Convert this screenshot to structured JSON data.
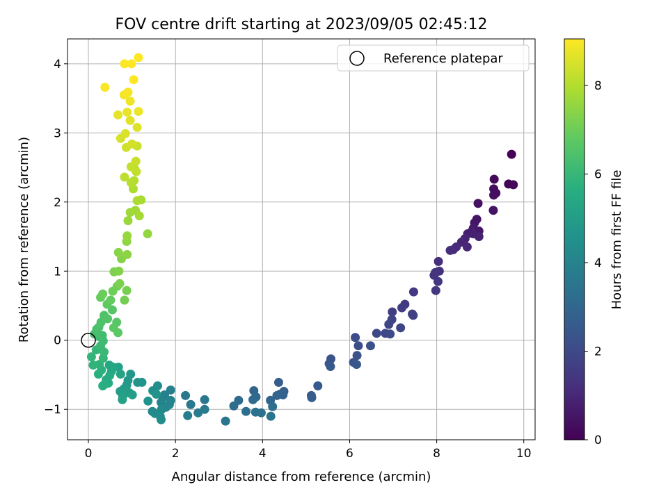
{
  "chart_data": {
    "type": "scatter",
    "title": "FOV centre drift starting at 2023/09/05 02:45:12",
    "xlabel": "Angular distance from reference (arcmin)",
    "ylabel": "Rotation from reference (arcmin)",
    "xlim": [
      -0.48,
      10.26
    ],
    "ylim": [
      -1.44,
      4.36
    ],
    "xticks": [
      0,
      2,
      4,
      6,
      8,
      10
    ],
    "yticks": [
      -1,
      0,
      1,
      2,
      3,
      4
    ],
    "grid": true,
    "legend": {
      "placement": "top-right",
      "entries": [
        "Reference platepar"
      ]
    },
    "reference_point": {
      "x": 0,
      "y": 0
    },
    "colorbar": {
      "label": "Hours from first FF file",
      "colormap": "viridis",
      "range": [
        0,
        9.05
      ],
      "ticks": [
        0,
        2,
        4,
        6,
        8
      ]
    },
    "series": [
      {
        "points": [
          [
            9.72,
            2.69,
            0.05
          ],
          [
            9.65,
            2.26,
            0.1
          ],
          [
            9.76,
            2.25,
            0.15
          ],
          [
            9.32,
            2.33,
            0.2
          ],
          [
            9.31,
            2.19,
            0.25
          ],
          [
            9.36,
            2.13,
            0.3
          ],
          [
            9.31,
            2.1,
            0.35
          ],
          [
            8.95,
            1.98,
            0.4
          ],
          [
            9.3,
            1.88,
            0.45
          ],
          [
            8.92,
            1.75,
            0.5
          ],
          [
            8.87,
            1.7,
            0.55
          ],
          [
            8.97,
            1.58,
            0.6
          ],
          [
            8.84,
            1.62,
            0.65
          ],
          [
            8.8,
            1.57,
            0.7
          ],
          [
            8.71,
            1.54,
            0.75
          ],
          [
            8.84,
            1.54,
            0.8
          ],
          [
            8.97,
            1.5,
            0.85
          ],
          [
            8.65,
            1.47,
            0.9
          ],
          [
            8.57,
            1.42,
            0.95
          ],
          [
            8.7,
            1.35,
            1.0
          ],
          [
            8.45,
            1.35,
            1.05
          ],
          [
            8.38,
            1.31,
            1.1
          ],
          [
            8.31,
            1.3,
            1.15
          ],
          [
            8.04,
            1.14,
            1.2
          ],
          [
            8.06,
            1.0,
            1.25
          ],
          [
            7.97,
            0.98,
            1.3
          ],
          [
            7.94,
            0.94,
            1.35
          ],
          [
            8.03,
            0.85,
            1.4
          ],
          [
            7.98,
            0.72,
            1.45
          ],
          [
            7.47,
            0.7,
            1.5
          ],
          [
            7.27,
            0.52,
            1.55
          ],
          [
            7.2,
            0.47,
            1.6
          ],
          [
            6.98,
            0.41,
            1.65
          ],
          [
            7.44,
            0.38,
            1.7
          ],
          [
            7.46,
            0.36,
            1.75
          ],
          [
            6.97,
            0.3,
            1.8
          ],
          [
            6.9,
            0.23,
            1.85
          ],
          [
            7.17,
            0.18,
            1.9
          ],
          [
            6.62,
            0.1,
            1.95
          ],
          [
            6.82,
            0.1,
            2.0
          ],
          [
            6.93,
            0.09,
            2.05
          ],
          [
            6.13,
            0.04,
            2.1
          ],
          [
            6.2,
            -0.08,
            2.15
          ],
          [
            6.48,
            -0.08,
            2.2
          ],
          [
            6.17,
            -0.22,
            2.25
          ],
          [
            5.57,
            -0.27,
            2.3
          ],
          [
            6.09,
            -0.32,
            2.35
          ],
          [
            5.53,
            -0.34,
            2.4
          ],
          [
            6.16,
            -0.35,
            2.45
          ],
          [
            5.56,
            -0.38,
            2.5
          ],
          [
            5.27,
            -0.66,
            2.55
          ],
          [
            5.12,
            -0.8,
            2.6
          ],
          [
            5.13,
            -0.83,
            2.65
          ],
          [
            4.37,
            -0.61,
            2.7
          ],
          [
            4.49,
            -0.74,
            2.75
          ],
          [
            4.4,
            -0.78,
            2.8
          ],
          [
            4.47,
            -0.79,
            2.85
          ],
          [
            4.33,
            -0.8,
            2.9
          ],
          [
            4.18,
            -0.87,
            2.95
          ],
          [
            3.8,
            -0.73,
            3.0
          ],
          [
            3.85,
            -0.82,
            3.05
          ],
          [
            3.78,
            -0.86,
            3.1
          ],
          [
            3.45,
            -0.87,
            3.15
          ],
          [
            3.34,
            -0.95,
            3.2
          ],
          [
            4.23,
            -0.96,
            3.25
          ],
          [
            3.62,
            -1.03,
            3.3
          ],
          [
            3.84,
            -1.04,
            3.35
          ],
          [
            3.97,
            -1.05,
            3.4
          ],
          [
            4.19,
            -1.1,
            3.45
          ],
          [
            3.15,
            -1.17,
            3.5
          ],
          [
            2.67,
            -0.86,
            3.55
          ],
          [
            2.23,
            -0.8,
            3.6
          ],
          [
            2.35,
            -0.93,
            3.65
          ],
          [
            2.67,
            -1.0,
            3.7
          ],
          [
            2.52,
            -1.05,
            3.75
          ],
          [
            2.28,
            -1.09,
            3.8
          ],
          [
            1.89,
            -0.72,
            3.85
          ],
          [
            1.75,
            -0.79,
            3.9
          ],
          [
            1.71,
            -0.83,
            3.95
          ],
          [
            1.89,
            -0.87,
            4.0
          ],
          [
            1.67,
            -0.9,
            4.05
          ],
          [
            1.86,
            -0.93,
            4.1
          ],
          [
            1.78,
            -0.97,
            4.15
          ],
          [
            1.68,
            -1.0,
            4.2
          ],
          [
            1.47,
            -1.03,
            4.25
          ],
          [
            1.53,
            -1.06,
            4.3
          ],
          [
            1.65,
            -1.1,
            4.35
          ],
          [
            1.67,
            -1.15,
            4.4
          ],
          [
            1.59,
            -0.66,
            4.45
          ],
          [
            1.48,
            -0.73,
            4.5
          ],
          [
            1.37,
            -0.88,
            4.55
          ],
          [
            1.56,
            -0.78,
            4.6
          ],
          [
            1.23,
            -0.61,
            4.65
          ],
          [
            1.13,
            -0.61,
            4.7
          ],
          [
            0.97,
            -0.49,
            4.75
          ],
          [
            0.91,
            -0.58,
            4.8
          ],
          [
            0.88,
            -0.65,
            4.85
          ],
          [
            0.82,
            -0.7,
            4.9
          ],
          [
            0.73,
            -0.74,
            4.95
          ],
          [
            0.94,
            -0.76,
            5.0
          ],
          [
            1.01,
            -0.79,
            5.05
          ],
          [
            0.79,
            -0.81,
            5.1
          ],
          [
            0.78,
            -0.86,
            5.15
          ],
          [
            0.69,
            -0.39,
            5.2
          ],
          [
            0.74,
            -0.49,
            5.25
          ],
          [
            0.57,
            -0.39,
            5.3
          ],
          [
            0.48,
            -0.36,
            5.35
          ],
          [
            0.53,
            -0.45,
            5.4
          ],
          [
            0.49,
            -0.51,
            5.45
          ],
          [
            0.41,
            -0.57,
            5.5
          ],
          [
            0.46,
            -0.62,
            5.55
          ],
          [
            0.37,
            -0.64,
            5.6
          ],
          [
            0.33,
            -0.66,
            5.65
          ],
          [
            0.23,
            -0.49,
            5.7
          ],
          [
            0.3,
            -0.43,
            5.75
          ],
          [
            0.25,
            -0.35,
            5.8
          ],
          [
            0.11,
            -0.36,
            5.85
          ],
          [
            0.07,
            -0.24,
            5.9
          ],
          [
            0.18,
            -0.14,
            5.95
          ],
          [
            0.34,
            -0.26,
            6.0
          ],
          [
            0.36,
            -0.17,
            6.05
          ],
          [
            0.28,
            -0.08,
            6.1
          ],
          [
            0.34,
            -0.01,
            6.15
          ],
          [
            0.25,
            0.05,
            6.2
          ],
          [
            0.32,
            0.07,
            6.25
          ],
          [
            0.14,
            0.09,
            6.3
          ],
          [
            0.19,
            0.16,
            6.35
          ],
          [
            0.24,
            0.19,
            6.4
          ],
          [
            0.29,
            0.26,
            6.45
          ],
          [
            0.36,
            0.36,
            6.5
          ],
          [
            0.44,
            0.31,
            6.55
          ],
          [
            0.55,
            0.44,
            6.6
          ],
          [
            0.65,
            0.26,
            6.65
          ],
          [
            0.58,
            0.18,
            6.7
          ],
          [
            0.68,
            0.11,
            6.75
          ],
          [
            0.43,
            0.52,
            6.8
          ],
          [
            0.51,
            0.58,
            6.85
          ],
          [
            0.28,
            0.62,
            6.9
          ],
          [
            0.33,
            0.67,
            6.95
          ],
          [
            0.56,
            0.71,
            7.0
          ],
          [
            0.66,
            0.78,
            7.05
          ],
          [
            0.83,
            0.58,
            7.1
          ],
          [
            0.88,
            0.72,
            7.15
          ],
          [
            0.72,
            0.82,
            7.2
          ],
          [
            0.59,
            0.99,
            7.25
          ],
          [
            0.7,
            1.0,
            7.3
          ],
          [
            0.76,
            1.18,
            7.35
          ],
          [
            0.69,
            1.27,
            7.4
          ],
          [
            0.89,
            1.24,
            7.45
          ],
          [
            0.88,
            1.43,
            7.5
          ],
          [
            1.36,
            1.54,
            7.55
          ],
          [
            0.89,
            1.51,
            7.6
          ],
          [
            0.91,
            1.73,
            7.65
          ],
          [
            0.96,
            1.85,
            7.7
          ],
          [
            1.08,
            1.88,
            7.75
          ],
          [
            1.17,
            1.8,
            7.8
          ],
          [
            1.21,
            2.03,
            7.85
          ],
          [
            1.12,
            2.02,
            7.9
          ],
          [
            1.03,
            2.19,
            7.95
          ],
          [
            1.05,
            2.31,
            8.0
          ],
          [
            0.98,
            2.28,
            8.05
          ],
          [
            1.06,
            2.48,
            8.1
          ],
          [
            0.83,
            2.36,
            8.15
          ],
          [
            1.1,
            2.44,
            8.2
          ],
          [
            0.98,
            2.51,
            8.25
          ],
          [
            1.09,
            2.59,
            8.3
          ],
          [
            1.12,
            2.81,
            8.35
          ],
          [
            0.87,
            2.79,
            8.4
          ],
          [
            1.0,
            2.84,
            8.45
          ],
          [
            0.74,
            2.92,
            8.5
          ],
          [
            0.85,
            2.99,
            8.55
          ],
          [
            1.12,
            3.08,
            8.6
          ],
          [
            0.96,
            3.18,
            8.65
          ],
          [
            0.68,
            3.26,
            8.7
          ],
          [
            0.89,
            3.3,
            8.75
          ],
          [
            1.15,
            3.31,
            8.8
          ],
          [
            0.96,
            3.46,
            8.85
          ],
          [
            0.82,
            3.55,
            8.9
          ],
          [
            0.91,
            3.59,
            8.95
          ],
          [
            0.38,
            3.66,
            9.0
          ],
          [
            1.04,
            3.77,
            9.03
          ],
          [
            0.83,
            4.0,
            9.04
          ],
          [
            0.99,
            4.0,
            9.05
          ],
          [
            1.15,
            4.09,
            9.05
          ]
        ]
      }
    ]
  }
}
